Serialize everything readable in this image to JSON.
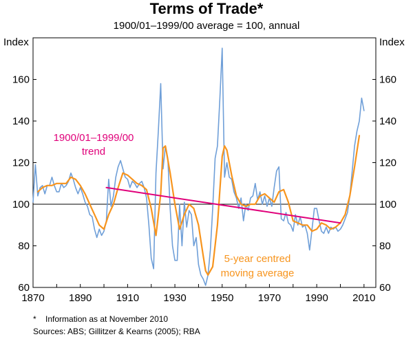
{
  "chart_data": {
    "type": "line",
    "title": "Terms of Trade*",
    "subtitle": "1900/01–1999/00 average = 100, annual",
    "ylabel_left": "Index",
    "ylabel_right": "Index",
    "xlim": [
      1870,
      2015
    ],
    "ylim": [
      60,
      180
    ],
    "x_ticks": [
      "1870",
      "1890",
      "1910",
      "1930",
      "1950",
      "1970",
      "1990",
      "2010"
    ],
    "y_ticks": [
      "60",
      "80",
      "100",
      "120",
      "140",
      "160"
    ],
    "gridlines": [
      100
    ],
    "series": [
      {
        "name": "Terms of trade",
        "color": "#6f9fd8",
        "x": [
          1870,
          1871,
          1872,
          1873,
          1874,
          1875,
          1876,
          1877,
          1878,
          1879,
          1880,
          1881,
          1882,
          1883,
          1884,
          1885,
          1886,
          1887,
          1888,
          1889,
          1890,
          1891,
          1892,
          1893,
          1894,
          1895,
          1896,
          1897,
          1898,
          1899,
          1900,
          1901,
          1902,
          1903,
          1904,
          1905,
          1906,
          1907,
          1908,
          1909,
          1910,
          1911,
          1912,
          1913,
          1914,
          1915,
          1916,
          1917,
          1918,
          1919,
          1920,
          1921,
          1922,
          1923,
          1924,
          1925,
          1926,
          1927,
          1928,
          1929,
          1930,
          1931,
          1932,
          1933,
          1934,
          1935,
          1936,
          1937,
          1938,
          1939,
          1940,
          1941,
          1942,
          1943,
          1944,
          1945,
          1946,
          1947,
          1948,
          1949,
          1950,
          1951,
          1952,
          1953,
          1954,
          1955,
          1956,
          1957,
          1958,
          1959,
          1960,
          1961,
          1962,
          1963,
          1964,
          1965,
          1966,
          1967,
          1968,
          1969,
          1970,
          1971,
          1972,
          1973,
          1974,
          1975,
          1976,
          1977,
          1978,
          1979,
          1980,
          1981,
          1982,
          1983,
          1984,
          1985,
          1986,
          1987,
          1988,
          1989,
          1990,
          1991,
          1992,
          1993,
          1994,
          1995,
          1996,
          1997,
          1998,
          1999,
          2000,
          2001,
          2002,
          2003,
          2004,
          2005,
          2006,
          2007,
          2008,
          2009,
          2010
        ],
        "values": [
          101,
          119,
          104,
          108,
          109,
          105,
          109,
          109,
          113,
          109,
          106,
          106,
          110,
          108,
          109,
          111,
          115,
          112,
          108,
          105,
          108,
          105,
          101,
          99,
          95,
          94,
          88,
          84,
          88,
          85,
          87,
          92,
          112,
          99,
          104,
          113,
          118,
          121,
          117,
          113,
          112,
          108,
          111,
          110,
          108,
          110,
          111,
          108,
          103,
          90,
          74,
          69,
          115,
          135,
          158,
          117,
          128,
          122,
          98,
          80,
          73,
          73,
          100,
          80,
          101,
          89,
          97,
          95,
          80,
          84,
          71,
          66,
          64,
          61,
          66,
          78,
          98,
          122,
          128,
          150,
          175,
          113,
          120,
          113,
          112,
          106,
          103,
          98,
          103,
          92,
          100,
          97,
          103,
          104,
          110,
          102,
          106,
          100,
          104,
          99,
          103,
          99,
          108,
          116,
          118,
          93,
          92,
          96,
          91,
          90,
          87,
          95,
          90,
          94,
          89,
          90,
          86,
          78,
          88,
          98,
          98,
          92,
          87,
          86,
          89,
          86,
          89,
          88,
          89,
          87,
          88,
          90,
          93,
          96,
          104,
          116,
          128,
          135,
          140,
          151,
          145
        ],
        "legend": ""
      },
      {
        "name": "5-year centred moving average",
        "color": "#f7941d",
        "x": [
          1872,
          1874,
          1876,
          1878,
          1880,
          1882,
          1884,
          1886,
          1888,
          1890,
          1892,
          1894,
          1896,
          1898,
          1900,
          1902,
          1904,
          1906,
          1908,
          1910,
          1912,
          1914,
          1916,
          1918,
          1920,
          1922,
          1924,
          1925,
          1926,
          1928,
          1930,
          1932,
          1934,
          1936,
          1938,
          1940,
          1942,
          1943,
          1944,
          1946,
          1948,
          1950,
          1951,
          1952,
          1954,
          1956,
          1958,
          1960,
          1962,
          1964,
          1966,
          1968,
          1970,
          1972,
          1974,
          1976,
          1978,
          1980,
          1982,
          1984,
          1986,
          1988,
          1990,
          1992,
          1994,
          1996,
          1998,
          2000,
          2002,
          2004,
          2006,
          2008
        ],
        "values": [
          106,
          108,
          109,
          109,
          110,
          110,
          110,
          113,
          112,
          109,
          105,
          100,
          95,
          90,
          88,
          95,
          100,
          108,
          115,
          114,
          112,
          110,
          109,
          107,
          98,
          85,
          105,
          127,
          128,
          115,
          100,
          88,
          95,
          100,
          98,
          90,
          75,
          68,
          66,
          70,
          90,
          123,
          128,
          126,
          114,
          104,
          100,
          99,
          100,
          100,
          104,
          105,
          103,
          101,
          106,
          107,
          101,
          92,
          91,
          90,
          90,
          87,
          88,
          91,
          90,
          88,
          89,
          91,
          95,
          104,
          118,
          133
        ],
        "legend": "5-year centred moving average"
      },
      {
        "name": "1900/01–1999/00 trend",
        "color": "#e0007a",
        "x": [
          1901,
          2000
        ],
        "values": [
          108,
          91
        ],
        "legend": "1900/01–1999/00 trend"
      }
    ],
    "annotations": {
      "trend_line1": "1900/01–1999/00",
      "trend_line2": "trend",
      "ma_line1": "5-year centred",
      "ma_line2": "moving average"
    },
    "footnotes": [
      "*    Information as at November 2010",
      "Sources: ABS; Gillitzer & Kearns (2005); RBA"
    ]
  }
}
